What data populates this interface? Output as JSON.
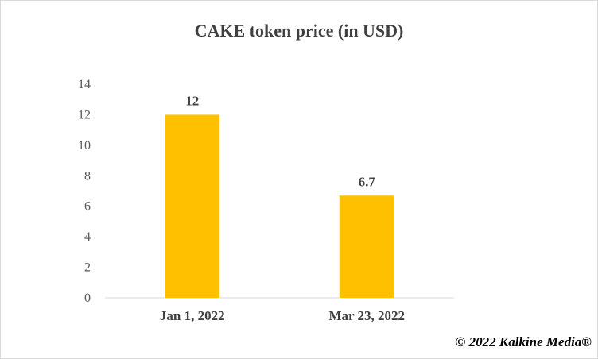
{
  "chart_data": {
    "type": "bar",
    "title": "CAKE token price (in USD)",
    "categories": [
      "Jan 1, 2022",
      "Mar 23, 2022"
    ],
    "values": [
      12,
      6.7
    ],
    "value_labels": [
      "12",
      "6.7"
    ],
    "xlabel": "",
    "ylabel": "",
    "ylim": [
      0,
      14
    ],
    "yticks": [
      0,
      2,
      4,
      6,
      8,
      10,
      12,
      14
    ],
    "grid": false,
    "legend": "none",
    "bar_color": "#FFC000"
  },
  "footer": {
    "copyright": "© 2022 Kalkine Media®"
  }
}
